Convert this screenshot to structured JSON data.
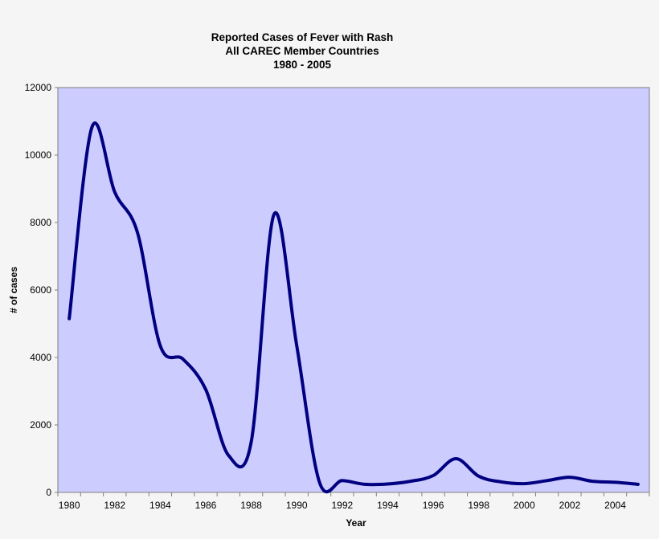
{
  "chart_data": {
    "type": "line",
    "title": [
      "Reported Cases of Fever with Rash",
      "All CAREC Member Countries",
      "1980 - 2005"
    ],
    "xlabel": "Year",
    "ylabel": "# of cases",
    "ylim": [
      0,
      12000
    ],
    "yticks": [
      "0",
      "2000",
      "4000",
      "6000",
      "8000",
      "10000",
      "12000"
    ],
    "xtick_labels": [
      "1980",
      "1982",
      "1984",
      "1986",
      "1988",
      "1990",
      "1992",
      "1994",
      "1996",
      "1998",
      "2000",
      "2002",
      "2004"
    ],
    "grid": false,
    "smooth": true,
    "plot_background": "#ccccff",
    "line_color": "#000080",
    "x": [
      1980,
      1981,
      1982,
      1983,
      1984,
      1985,
      1986,
      1987,
      1988,
      1989,
      1990,
      1991,
      1992,
      1993,
      1994,
      1995,
      1996,
      1997,
      1998,
      1999,
      2000,
      2001,
      2002,
      2003,
      2004,
      2005
    ],
    "series": [
      {
        "name": "Cases",
        "values": [
          5150,
          10830,
          8900,
          7700,
          4350,
          3950,
          3050,
          1100,
          1500,
          8240,
          4350,
          300,
          350,
          240,
          250,
          330,
          500,
          1000,
          480,
          310,
          260,
          350,
          450,
          330,
          300,
          240
        ]
      }
    ]
  }
}
